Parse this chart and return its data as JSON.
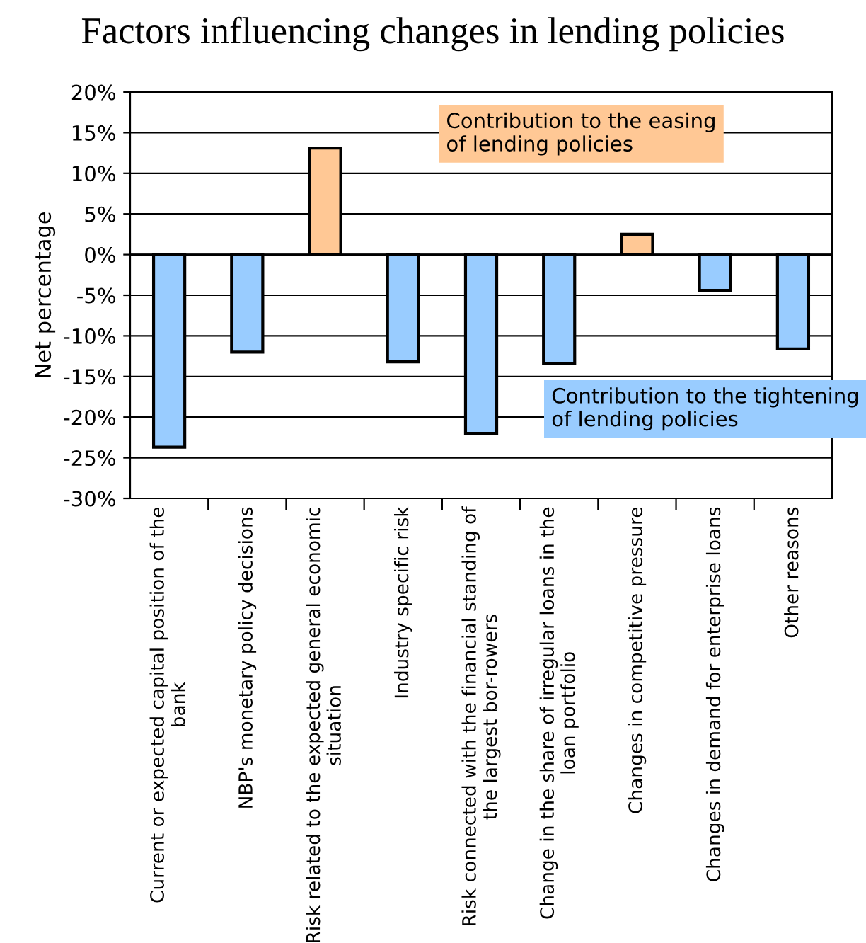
{
  "chart_data": {
    "type": "bar",
    "title": "Factors influencing changes in lending policies",
    "ylabel": "Net percentage",
    "categories": [
      "Current or expected capital position of the\nbank",
      "NBP's monetary policy decisions",
      "Risk related to the expected general economic\nsituation",
      "Industry specific risk",
      "Risk connected with the financial standing of\nthe largest bor-rowers",
      "Change in the share of irregular loans in the\nloan portfolio",
      "Changes in competitive pressure",
      "Changes in demand for enterprise loans",
      "Other reasons"
    ],
    "values": [
      -23.7,
      -12.0,
      13.1,
      -13.2,
      -22.0,
      -13.4,
      2.5,
      -4.4,
      -11.6
    ],
    "colors": [
      "#99ccff",
      "#99ccff",
      "#ffc895",
      "#99ccff",
      "#99ccff",
      "#99ccff",
      "#ffc895",
      "#99ccff",
      "#99ccff"
    ],
    "ylim": [
      -30,
      20
    ],
    "yticks": [
      {
        "value": -30,
        "label": "-30%"
      },
      {
        "value": -25,
        "label": "-25%"
      },
      {
        "value": -20,
        "label": "-20%"
      },
      {
        "value": -15,
        "label": "-15%"
      },
      {
        "value": -10,
        "label": "-10%"
      },
      {
        "value": -5,
        "label": "-5%"
      },
      {
        "value": 0,
        "label": "0%"
      },
      {
        "value": 5,
        "label": "5%"
      },
      {
        "value": 10,
        "label": "10%"
      },
      {
        "value": 15,
        "label": "15%"
      },
      {
        "value": 20,
        "label": "20%"
      }
    ],
    "grid": "y",
    "annotations": [
      "Contribution to the easing\nof lending policies",
      "Contribution to the tightening\nof lending policies"
    ]
  }
}
